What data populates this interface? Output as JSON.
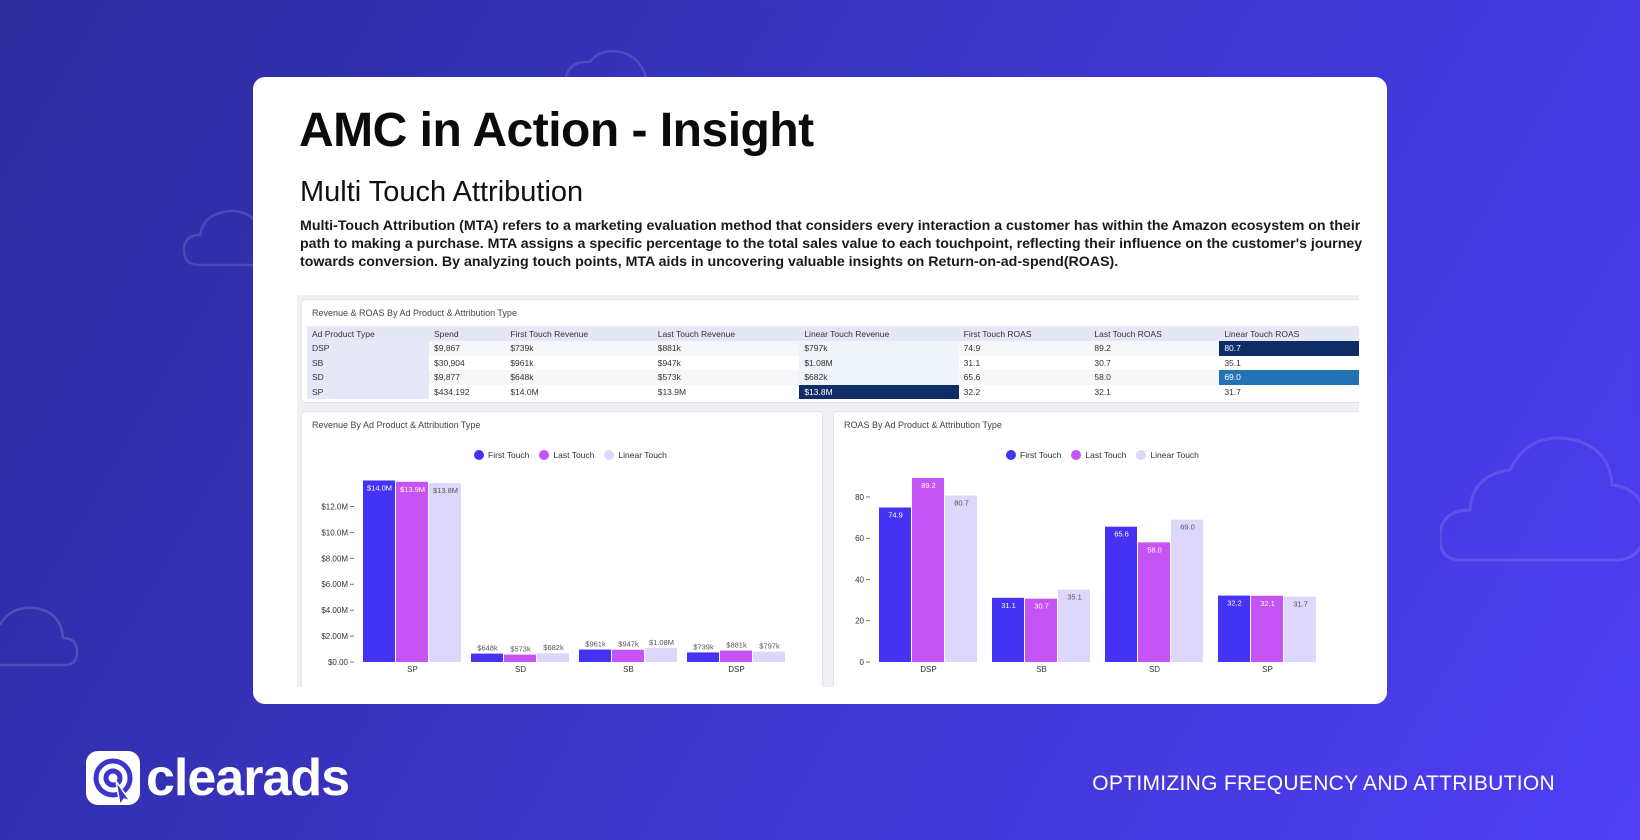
{
  "header": {
    "title": "AMC in Action - Insight",
    "subtitle": "Multi Touch Attribution",
    "description": "Multi-Touch Attribution (MTA) refers to a marketing evaluation method that considers every interaction a customer has within the Amazon ecosystem on their path to making a purchase. MTA assigns a specific percentage to the total sales value to each touchpoint, reflecting their influence on the customer's journey towards conversion. By analyzing touch points, MTA aids in uncovering valuable insights on Return-on-ad-spend(ROAS)."
  },
  "table": {
    "title": "Revenue & ROAS By Ad Product & Attribution Type",
    "columns": [
      "Ad Product Type",
      "Spend",
      "First Touch Revenue",
      "Last Touch Revenue",
      "Linear Touch Revenue",
      "First Touch ROAS",
      "Last Touch ROAS",
      "Linear Touch ROAS"
    ],
    "rows": [
      [
        "DSP",
        "$9,867",
        "$739k",
        "$881k",
        "$797k",
        "74.9",
        "89.2",
        "80.7"
      ],
      [
        "SB",
        "$30,904",
        "$961k",
        "$947k",
        "$1.08M",
        "31.1",
        "30.7",
        "35.1"
      ],
      [
        "SD",
        "$9,877",
        "$648k",
        "$573k",
        "$682k",
        "65.6",
        "58.0",
        "69.0"
      ],
      [
        "SP",
        "$434,192",
        "$14.0M",
        "$13.9M",
        "$13.8M",
        "32.2",
        "32.1",
        "31.7"
      ]
    ]
  },
  "colors": {
    "first": "#4433f4",
    "last": "#c653f3",
    "linear": "#dcd7fb"
  },
  "chart_data": [
    {
      "type": "bar",
      "title": "Revenue By Ad Product & Attribution Type",
      "categories": [
        "SP",
        "SD",
        "SB",
        "DSP"
      ],
      "series": [
        {
          "name": "First Touch",
          "values": [
            14.0,
            0.648,
            0.961,
            0.739
          ],
          "labels": [
            "$14.0M",
            "$648k",
            "$961k",
            "$739k"
          ]
        },
        {
          "name": "Last Touch",
          "values": [
            13.9,
            0.573,
            0.947,
            0.881
          ],
          "labels": [
            "$13.9M",
            "$573k",
            "$947k",
            "$881k"
          ]
        },
        {
          "name": "Linear Touch",
          "values": [
            13.8,
            0.682,
            1.08,
            0.797
          ],
          "labels": [
            "$13.8M",
            "$682k",
            "$1.08M",
            "$797k"
          ]
        }
      ],
      "yticks": [
        "$0.00",
        "$2.00M",
        "$4.00M",
        "$6.00M",
        "$8.00M",
        "$10.0M",
        "$12.0M"
      ],
      "ylim": [
        0,
        14.5
      ],
      "ylabel": "",
      "xlabel": ""
    },
    {
      "type": "bar",
      "title": "ROAS By Ad Product & Attribution Type",
      "categories": [
        "DSP",
        "SB",
        "SD",
        "SP"
      ],
      "series": [
        {
          "name": "First Touch",
          "values": [
            74.9,
            31.1,
            65.6,
            32.2
          ],
          "labels": [
            "74.9",
            "31.1",
            "65.6",
            "32.2"
          ]
        },
        {
          "name": "Last Touch",
          "values": [
            89.2,
            30.7,
            58.0,
            32.1
          ],
          "labels": [
            "89.2",
            "30.7",
            "58.0",
            "32.1"
          ]
        },
        {
          "name": "Linear Touch",
          "values": [
            80.7,
            35.1,
            69.0,
            31.7
          ],
          "labels": [
            "80.7",
            "35.1",
            "69.0",
            "31.7"
          ]
        }
      ],
      "yticks": [
        "0",
        "20",
        "40",
        "60",
        "80"
      ],
      "ylim": [
        0,
        89.2
      ],
      "ylabel": "",
      "xlabel": ""
    }
  ],
  "footer": {
    "logo_text": "clearads",
    "tagline": "OPTIMIZING FREQUENCY AND ATTRIBUTION"
  }
}
